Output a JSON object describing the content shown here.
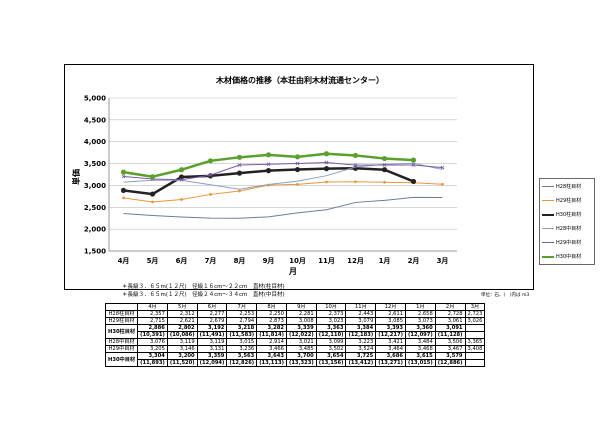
{
  "colors": {
    "h28": "#6a7f9b",
    "h29": "#e8963c",
    "h30": "#222222",
    "h28mid": "#8aa0c0",
    "h29mid": "#7b5aa6",
    "h30mid": "#5aa02c"
  },
  "chart_data": {
    "type": "line",
    "title": "木材価格の推移（本荘由利木材流通センター）",
    "xlabel": "月",
    "ylabel": "単価",
    "ylim": [
      1500,
      5000
    ],
    "yticks": [
      "1,500",
      "2,000",
      "2,500",
      "3,000",
      "3,500",
      "4,000",
      "4,500",
      "5,000"
    ],
    "categories": [
      "4月",
      "5月",
      "6月",
      "7月",
      "8月",
      "9月",
      "10月",
      "11月",
      "12月",
      "1月",
      "2月",
      "3月"
    ],
    "series": [
      {
        "name": "H28柱目材",
        "key": "h28",
        "marker": "none",
        "width": 1,
        "values": [
          2357,
          2312,
          2277,
          2253,
          2250,
          2281,
          2373,
          2443,
          2611,
          2658,
          2728,
          2723
        ]
      },
      {
        "name": "H29柱目材",
        "key": "h29",
        "marker": "dot",
        "width": 1,
        "values": [
          2715,
          2621,
          2679,
          2794,
          2873,
          3008,
          3023,
          3079,
          3085,
          3073,
          3061,
          3026
        ]
      },
      {
        "name": "H30柱目材",
        "key": "h30",
        "marker": "dot",
        "width": 2.5,
        "values": [
          2886,
          2802,
          3192,
          3218,
          3282,
          3339,
          3363,
          3384,
          3393,
          3360,
          3091,
          null
        ]
      },
      {
        "name": "H28中目材",
        "key": "h28mid",
        "marker": "none",
        "width": 1,
        "values": [
          3076,
          3119,
          3119,
          3015,
          2914,
          3021,
          3099,
          3223,
          3421,
          3484,
          3506,
          3365
        ]
      },
      {
        "name": "H29中目材",
        "key": "h29mid",
        "marker": "x",
        "width": 1,
        "values": [
          3205,
          3146,
          3131,
          3236,
          3466,
          3485,
          3502,
          3524,
          3464,
          3468,
          3467,
          3408
        ]
      },
      {
        "name": "H30中目材",
        "key": "h30mid",
        "marker": "dot",
        "width": 2.5,
        "values": [
          3304,
          3200,
          3359,
          3563,
          3643,
          3700,
          3654,
          3725,
          3686,
          3615,
          3579,
          null
        ]
      }
    ]
  },
  "notes": [
    "＊長級３．６５m(１２尺)　径級１６cm〜２２cm　直材(柱目材)",
    "＊長級３．６５m(１２尺)　径級２４cm〜３４cm　直材(中目材)"
  ],
  "unit_note": "単位：石、(　)内は m3",
  "table": {
    "header": [
      "",
      "4月",
      "5月",
      "6月",
      "7月",
      "8月",
      "9月",
      "10月",
      "11月",
      "12月",
      "1月",
      "2月",
      "3月"
    ],
    "rows": [
      {
        "label": "H28柱目材",
        "cells": [
          "2,357",
          "2,312",
          "2,277",
          "2,253",
          "2,250",
          "2,281",
          "2,373",
          "2,443",
          "2,611",
          "2,658",
          "2,728",
          "2,723"
        ]
      },
      {
        "label": "H29柱目材",
        "cells": [
          "2,715",
          "2,621",
          "2,679",
          "2,794",
          "2,873",
          "3,008",
          "3,023",
          "3,079",
          "3,085",
          "3,073",
          "3,061",
          "3,026"
        ]
      },
      {
        "label": "H30柱目材",
        "cells": [
          "2,886",
          "2,802",
          "3,192",
          "3,218",
          "3,282",
          "3,339",
          "3,363",
          "3,384",
          "3,393",
          "3,360",
          "3,091",
          ""
        ],
        "sub": [
          "(10,391)",
          "(10,086)",
          "(11,491)",
          "(11,583)",
          "(11,814)",
          "(12,022)",
          "(12,110)",
          "(12,183)",
          "(12,217)",
          "(12,097)",
          "(11,128)",
          ""
        ]
      },
      {
        "label": "H28中目材",
        "cells": [
          "3,076",
          "3,119",
          "3,119",
          "3,015",
          "2,914",
          "3,021",
          "3,099",
          "3,223",
          "3,421",
          "3,484",
          "3,506",
          "3,365"
        ]
      },
      {
        "label": "H29中目材",
        "cells": [
          "3,205",
          "3,146",
          "3,131",
          "3,236",
          "3,466",
          "3,485",
          "3,502",
          "3,524",
          "3,464",
          "3,468",
          "3,467",
          "3,408"
        ]
      },
      {
        "label": "H30中目材",
        "cells": [
          "3,304",
          "3,200",
          "3,359",
          "3,563",
          "3,643",
          "3,700",
          "3,654",
          "3,725",
          "3,686",
          "3,615",
          "3,579",
          ""
        ],
        "sub": [
          "(11,893)",
          "(11,520)",
          "(12,094)",
          "(12,826)",
          "(13,113)",
          "(13,323)",
          "(13,156)",
          "(13,412)",
          "(13,271)",
          "(13,015)",
          "(12,886)",
          ""
        ]
      }
    ]
  }
}
